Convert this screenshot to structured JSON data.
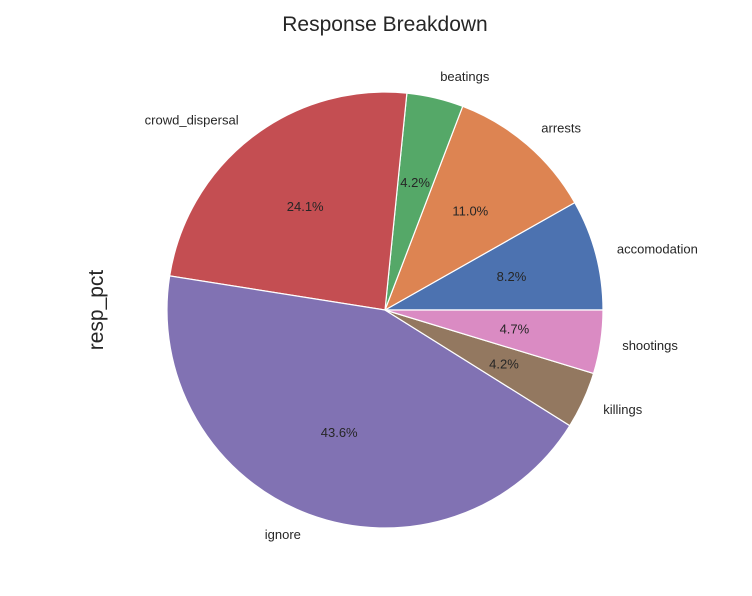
{
  "chart_data": {
    "type": "pie",
    "title": "Response Breakdown",
    "ylabel": "resp_pct",
    "slices": [
      {
        "label": "accomodation",
        "value": 8.2,
        "pct_label": "8.2%",
        "color": "#4c72b0"
      },
      {
        "label": "arrests",
        "value": 11.0,
        "pct_label": "11.0%",
        "color": "#dd8452"
      },
      {
        "label": "beatings",
        "value": 4.2,
        "pct_label": "4.2%",
        "color": "#55a868"
      },
      {
        "label": "crowd_dispersal",
        "value": 24.1,
        "pct_label": "24.1%",
        "color": "#c44e52"
      },
      {
        "label": "ignore",
        "value": 43.6,
        "pct_label": "43.6%",
        "color": "#8172b3"
      },
      {
        "label": "killings",
        "value": 4.2,
        "pct_label": "4.2%",
        "color": "#937860"
      },
      {
        "label": "shootings",
        "value": 4.7,
        "pct_label": "4.7%",
        "color": "#da8bc3"
      }
    ],
    "start_angle_deg": 0,
    "direction": "counterclockwise",
    "legend": "none"
  }
}
